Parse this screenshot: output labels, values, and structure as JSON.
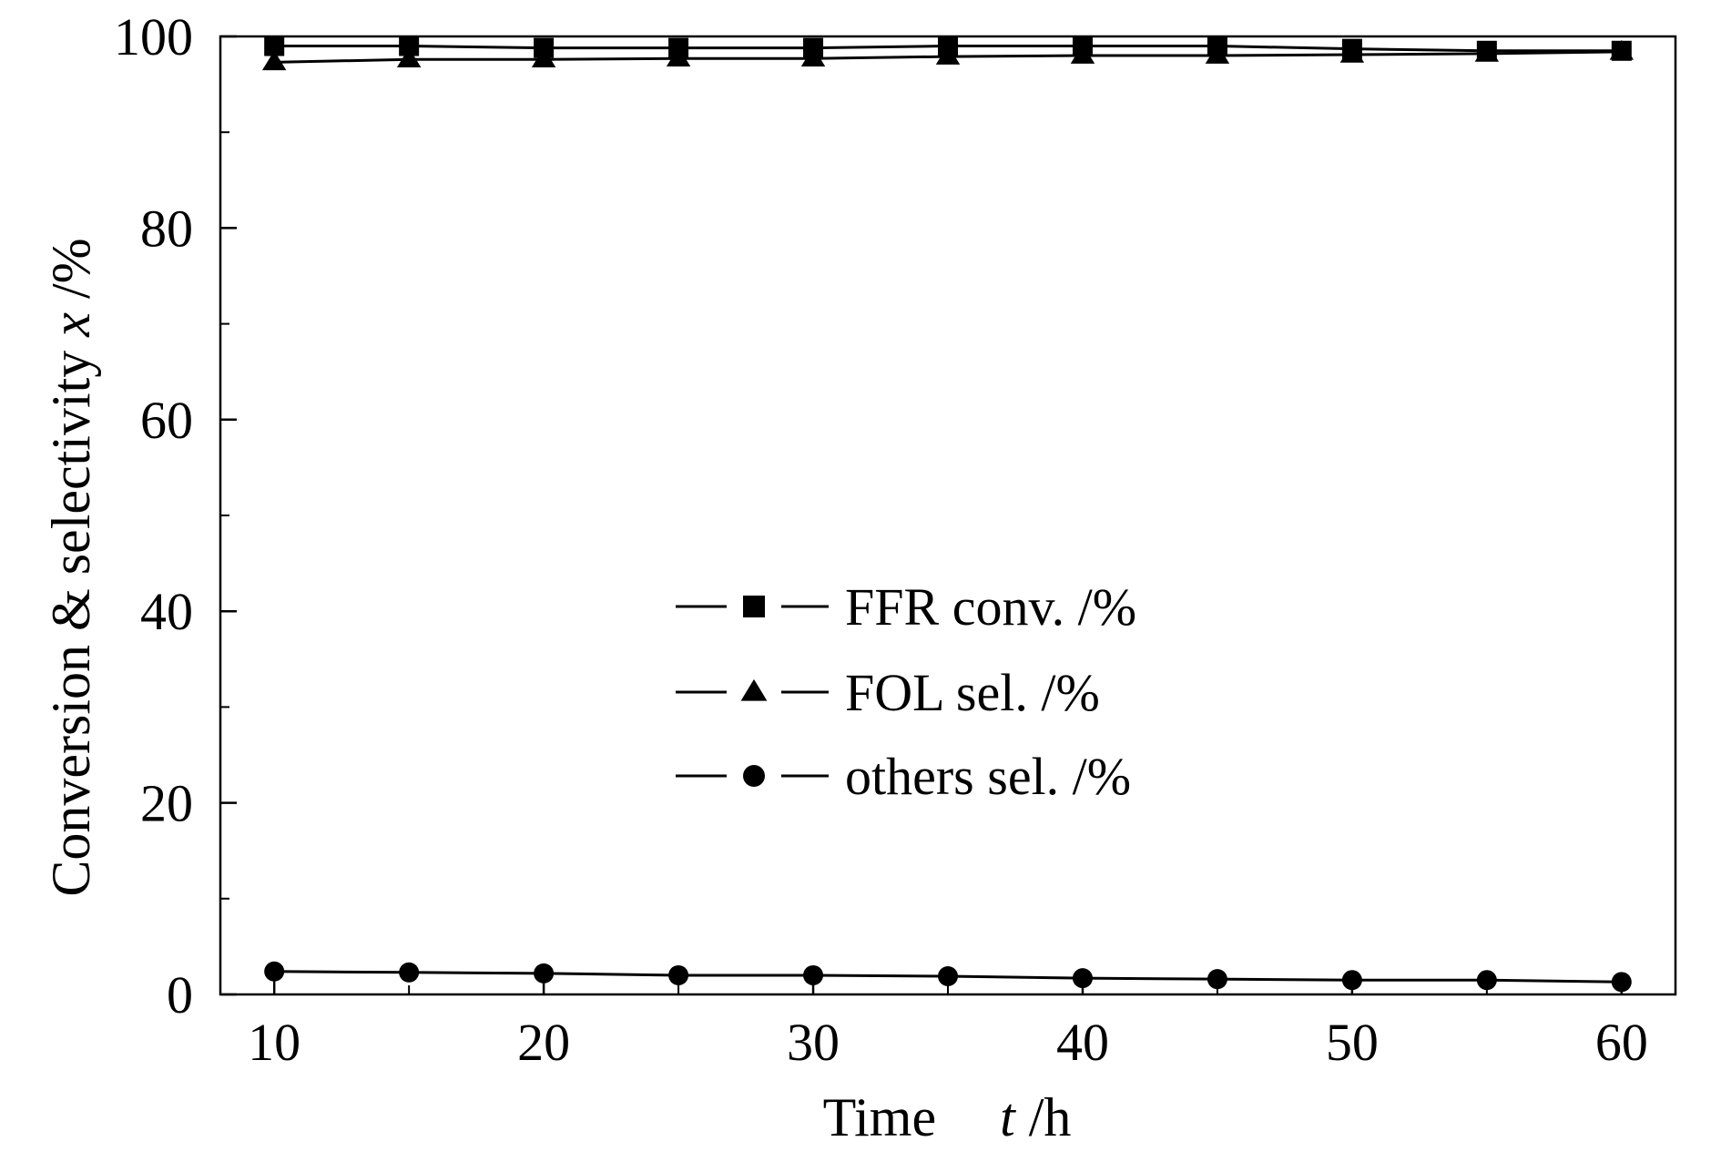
{
  "chart_data": {
    "type": "line",
    "xlabel": {
      "name": "Time",
      "symbol": "t",
      "unit": " /h"
    },
    "ylabel": {
      "name": "Conversion & selectivity ",
      "symbol": "x",
      "unit": " /%"
    },
    "xlim": [
      8,
      62
    ],
    "ylim": [
      0,
      100
    ],
    "xticks": [
      10,
      20,
      30,
      40,
      50,
      60
    ],
    "yticks": [
      0,
      20,
      40,
      60,
      80,
      100
    ],
    "yticks_minor": [
      10,
      30,
      50,
      70,
      90
    ],
    "xticks_minor": [
      15,
      25,
      35,
      45,
      55
    ],
    "grid": false,
    "legend_position": "center",
    "x": [
      10,
      15,
      20,
      25,
      30,
      35,
      40,
      45,
      50,
      55,
      60
    ],
    "series": [
      {
        "name": "FFR conv. /%",
        "marker": "square",
        "values": [
          99.0,
          99.0,
          98.8,
          98.8,
          98.8,
          99.0,
          99.0,
          99.0,
          98.7,
          98.5,
          98.5
        ]
      },
      {
        "name": "FOL sel. /%",
        "marker": "triangle",
        "values": [
          97.3,
          97.6,
          97.6,
          97.7,
          97.7,
          97.9,
          98.0,
          98.0,
          98.1,
          98.2,
          98.4
        ]
      },
      {
        "name": "others sel. /%",
        "marker": "circle",
        "values": [
          2.4,
          2.3,
          2.2,
          2.0,
          2.0,
          1.9,
          1.7,
          1.6,
          1.5,
          1.5,
          1.3
        ]
      }
    ],
    "colors": {
      "line": "#000000",
      "background": "#ffffff"
    }
  }
}
